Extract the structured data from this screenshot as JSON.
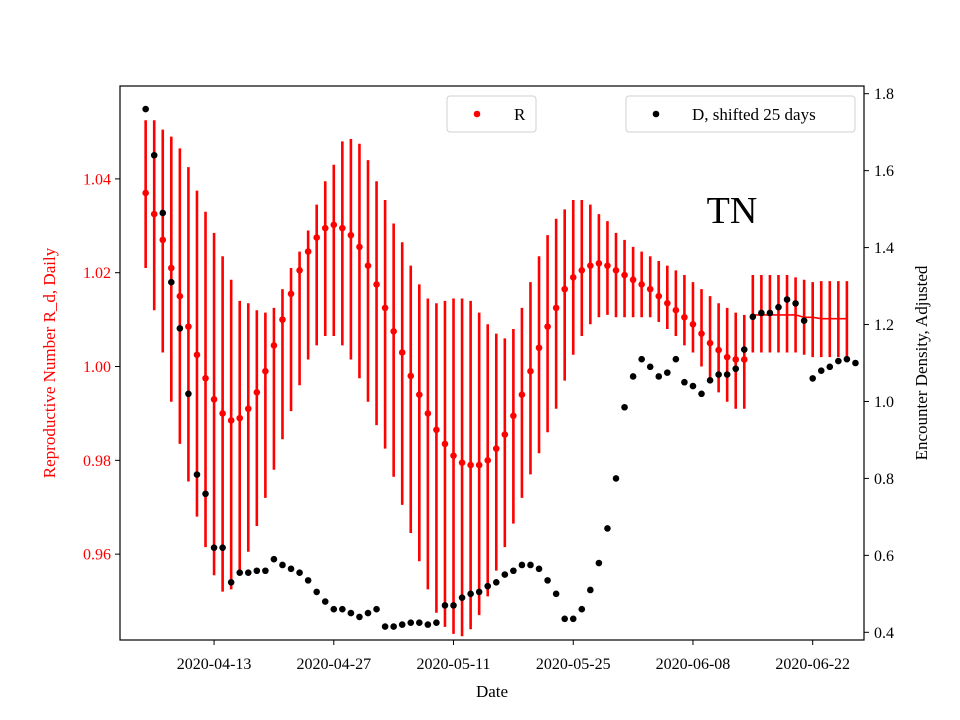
{
  "chart_data": {
    "type": "scatter",
    "state_label": "TN",
    "xlabel": "Date",
    "ylabel_left": "Reproductive Number R_d, Daily",
    "ylabel_right": "Encounter Density, Adjusted",
    "x_ticks": [
      "2020-04-13",
      "2020-04-27",
      "2020-05-11",
      "2020-05-25",
      "2020-06-08",
      "2020-06-22"
    ],
    "y_left_ticks": [
      "0.96",
      "0.98",
      "1.00",
      "1.02",
      "1.04"
    ],
    "y_right_ticks": [
      "0.4",
      "0.6",
      "0.8",
      "1.0",
      "1.2",
      "1.4",
      "1.6",
      "1.8"
    ],
    "xlim": [
      "2020-04-02",
      "2020-06-28"
    ],
    "ylim_left": [
      0.9417,
      1.0598
    ],
    "ylim_right": [
      0.38,
      1.82
    ],
    "colors": {
      "r_series": "#ff0000",
      "d_series": "#000000",
      "left_axis": "#ff0000"
    },
    "legend": {
      "r_label": "R",
      "d_label": "D, shifted 25 days",
      "placement": "top"
    },
    "series": [
      {
        "name": "R",
        "start_date": "2020-04-05",
        "values": [
          1.037,
          1.0325,
          1.027,
          1.021,
          1.015,
          1.0085,
          1.0025,
          0.9975,
          0.993,
          0.99,
          0.9885,
          0.989,
          0.991,
          0.9945,
          0.999,
          1.0045,
          1.01,
          1.0155,
          1.0205,
          1.0245,
          1.0275,
          1.0295,
          1.0302,
          1.0295,
          1.028,
          1.0255,
          1.0215,
          1.0175,
          1.0125,
          1.0075,
          1.003,
          0.998,
          0.994,
          0.99,
          0.9865,
          0.9835,
          0.981,
          0.9795,
          0.979,
          0.979,
          0.98,
          0.9825,
          0.9855,
          0.9895,
          0.994,
          0.999,
          1.004,
          1.0085,
          1.0125,
          1.0165,
          1.019,
          1.0205,
          1.0215,
          1.022,
          1.0215,
          1.0205,
          1.0195,
          1.0185,
          1.0175,
          1.0165,
          1.015,
          1.0135,
          1.012,
          1.0105,
          1.009,
          1.007,
          1.005,
          1.0035,
          1.002,
          1.0015,
          1.0015
        ],
        "error_low": [
          1.021,
          1.012,
          1.003,
          0.9925,
          0.9835,
          0.9755,
          0.968,
          0.9615,
          0.9555,
          0.952,
          0.9525,
          0.9555,
          0.9605,
          0.966,
          0.972,
          0.978,
          0.9845,
          0.9905,
          0.996,
          1.0015,
          1.0045,
          1.0065,
          1.0065,
          1.0045,
          1.0015,
          0.9975,
          0.9925,
          0.9875,
          0.9825,
          0.9765,
          0.9705,
          0.9645,
          0.9585,
          0.9525,
          0.9475,
          0.9445,
          0.943,
          0.9425,
          0.944,
          0.947,
          0.951,
          0.9565,
          0.9615,
          0.9665,
          0.972,
          0.977,
          0.9815,
          0.986,
          0.991,
          0.997,
          1.0025,
          1.0065,
          1.009,
          1.0105,
          1.011,
          1.0105,
          1.0105,
          1.0105,
          1.0105,
          1.0105,
          1.0095,
          1.008,
          1.0065,
          1.0045,
          1.003,
          1.0,
          0.9975,
          0.9945,
          0.9925,
          0.991,
          0.991
        ],
        "error_high": [
          1.0525,
          1.0525,
          1.0505,
          1.049,
          1.0465,
          1.0425,
          1.0375,
          1.033,
          1.0285,
          1.0235,
          1.0185,
          1.014,
          1.0135,
          1.012,
          1.0115,
          1.0125,
          1.0165,
          1.021,
          1.0245,
          1.029,
          1.0345,
          1.0395,
          1.043,
          1.048,
          1.0485,
          1.0475,
          1.044,
          1.0395,
          1.0355,
          1.0305,
          1.0265,
          1.0215,
          1.0175,
          1.0145,
          1.0135,
          1.014,
          1.0145,
          1.0145,
          1.014,
          1.0115,
          1.009,
          1.007,
          1.006,
          1.008,
          1.0125,
          1.018,
          1.0235,
          1.028,
          1.0315,
          1.0335,
          1.0355,
          1.0355,
          1.0345,
          1.0325,
          1.031,
          1.0285,
          1.027,
          1.0255,
          1.0245,
          1.0235,
          1.0225,
          1.0215,
          1.0205,
          1.0195,
          1.018,
          1.0165,
          1.015,
          1.0135,
          1.0125,
          1.0115,
          1.011
        ],
        "tail_start_date": "2020-06-15",
        "tail_values": [
          1.011,
          1.011,
          1.011,
          1.011,
          1.011,
          1.011,
          1.0105,
          1.0105,
          1.0102,
          1.0102,
          1.0102,
          1.0102
        ],
        "tail_error_low": [
          1.003,
          1.003,
          1.003,
          1.003,
          1.003,
          1.003,
          1.0025,
          1.002,
          1.002,
          1.002,
          1.002,
          1.002
        ],
        "tail_error_high": [
          1.0195,
          1.0195,
          1.0195,
          1.0195,
          1.0195,
          1.019,
          1.0185,
          1.018,
          1.0182,
          1.0182,
          1.0182,
          1.0182
        ]
      },
      {
        "name": "D, shifted 25 days",
        "start_date": "2020-04-05",
        "values": [
          1.76,
          1.64,
          1.49,
          1.31,
          1.19,
          1.02,
          0.81,
          0.76,
          0.62,
          0.62,
          0.53,
          0.555,
          0.555,
          0.56,
          0.56,
          0.59,
          0.575,
          0.565,
          0.555,
          0.535,
          0.505,
          0.48,
          0.46,
          0.46,
          0.45,
          0.44,
          0.45,
          0.46,
          0.415,
          0.415,
          0.42,
          0.425,
          0.425,
          0.42,
          0.425,
          0.47,
          0.47,
          0.49,
          0.5,
          0.505,
          0.52,
          0.53,
          0.55,
          0.56,
          0.575,
          0.575,
          0.565,
          0.535,
          0.5,
          0.435,
          0.435,
          0.46,
          0.51,
          0.58,
          0.67,
          0.8,
          0.985,
          1.065,
          1.11,
          1.09,
          1.065,
          1.075,
          1.11,
          1.05,
          1.04,
          1.02,
          1.055,
          1.07,
          1.07,
          1.085,
          1.135,
          1.22,
          1.23,
          1.23,
          1.245,
          1.265,
          1.255,
          1.21,
          1.06,
          1.08,
          1.09,
          1.105,
          1.11,
          1.1
        ]
      }
    ]
  }
}
